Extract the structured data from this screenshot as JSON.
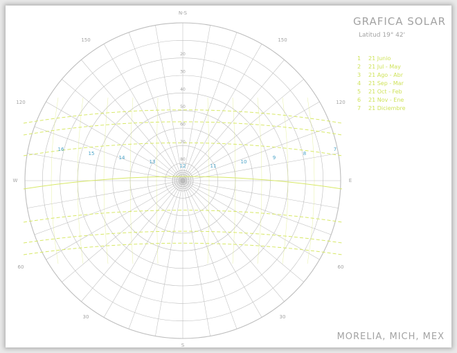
{
  "chart_data": {
    "type": "sun-path polar diagram",
    "title": "GRAFICA SOLAR",
    "subtitle": "Latitud 19° 42'",
    "location": "MORELIA, MICH, MEX",
    "cardinal": {
      "north": "N-S",
      "south": "S",
      "east": "E",
      "west": "W"
    },
    "azimuth_labels": [
      "150",
      "150",
      "120",
      "120",
      "60",
      "60",
      "30",
      "30"
    ],
    "altitude_labels": [
      "20",
      "30",
      "40",
      "50",
      "60",
      "70",
      "80"
    ],
    "legend": [
      {
        "num": "1",
        "label": "21 Junio"
      },
      {
        "num": "2",
        "label": "21 Jul - May"
      },
      {
        "num": "3",
        "label": "21 Ago - Abr"
      },
      {
        "num": "4",
        "label": "21 Sep - Mar"
      },
      {
        "num": "5",
        "label": "21 Oct - Feb"
      },
      {
        "num": "6",
        "label": "21 Nov - Ene"
      },
      {
        "num": "7",
        "label": "21 Diciembre"
      }
    ],
    "hour_labels": [
      "16",
      "15",
      "14",
      "13",
      "12",
      "11",
      "10",
      "9",
      "8",
      "7"
    ],
    "colors": {
      "grid": "#bdbdbd",
      "sun_paths": "#d7e866",
      "hour_labels": "#4aa3c8",
      "text": "#a3a3a3"
    }
  }
}
